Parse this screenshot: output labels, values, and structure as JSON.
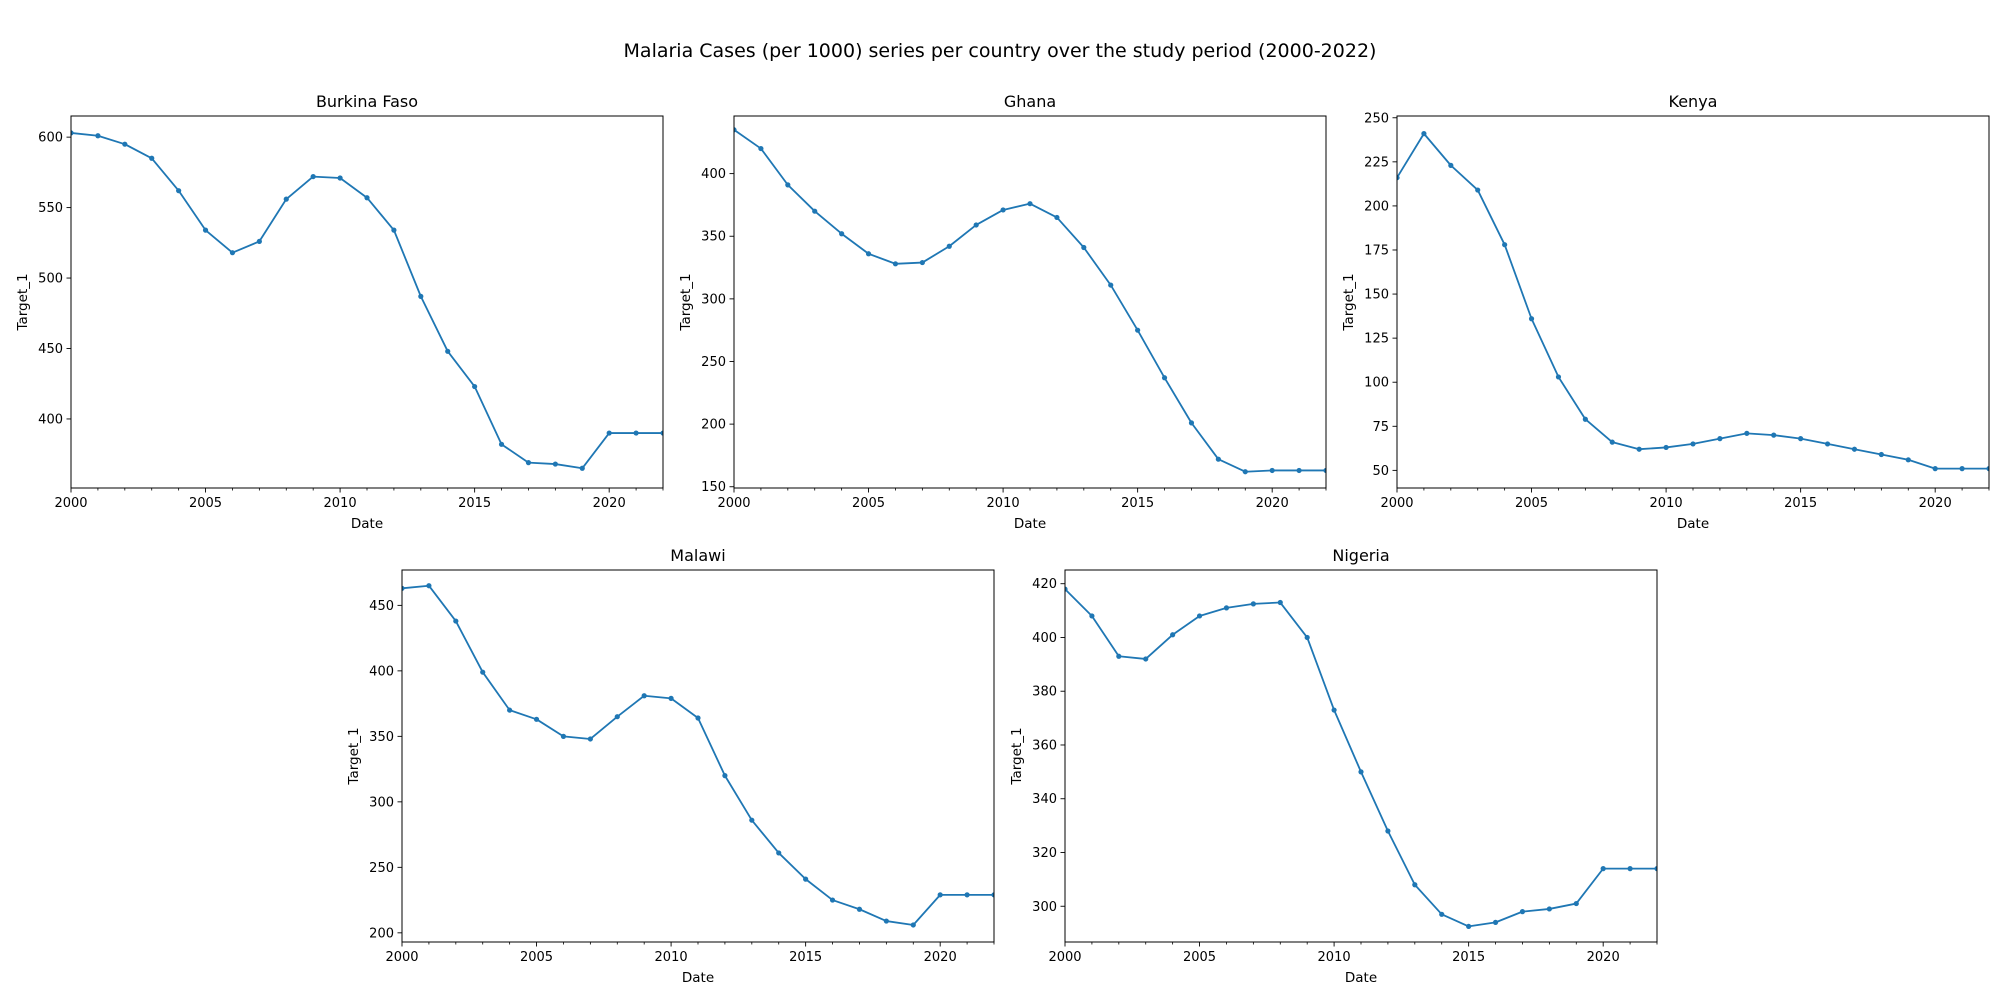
{
  "figure": {
    "title": "Malaria Cases (per 1000) series per country over the study period (2000-2022)",
    "line_color": "#1f77b4"
  },
  "chart_data": [
    {
      "type": "line",
      "title": "Burkina Faso",
      "xlabel": "Date",
      "ylabel": "Target_1",
      "xlim": [
        2000,
        2022
      ],
      "ylim": [
        351,
        615
      ],
      "xticks": [
        2000,
        2005,
        2010,
        2015,
        2020
      ],
      "yticks": [
        400,
        450,
        500,
        550,
        600
      ],
      "grid": false,
      "series": [
        {
          "x": [
            2000,
            2001,
            2002,
            2003,
            2004,
            2005,
            2006,
            2007,
            2008,
            2009,
            2010,
            2011,
            2012,
            2013,
            2014,
            2015,
            2016,
            2017,
            2018,
            2019,
            2020,
            2021,
            2022
          ],
          "y": [
            603,
            601,
            595,
            585,
            562,
            534,
            518,
            526,
            556,
            572,
            571,
            557,
            534,
            487,
            448,
            423,
            382,
            369,
            368,
            365,
            390,
            390,
            390
          ]
        }
      ]
    },
    {
      "type": "line",
      "title": "Ghana",
      "xlabel": "Date",
      "ylabel": "Target_1",
      "xlim": [
        2000,
        2022
      ],
      "ylim": [
        149,
        446
      ],
      "xticks": [
        2000,
        2005,
        2010,
        2015,
        2020
      ],
      "yticks": [
        150,
        200,
        250,
        300,
        350,
        400
      ],
      "grid": false,
      "series": [
        {
          "x": [
            2000,
            2001,
            2002,
            2003,
            2004,
            2005,
            2006,
            2007,
            2008,
            2009,
            2010,
            2011,
            2012,
            2013,
            2014,
            2015,
            2016,
            2017,
            2018,
            2019,
            2020,
            2021,
            2022
          ],
          "y": [
            435,
            420,
            391,
            370,
            352,
            336,
            328,
            329,
            342,
            359,
            371,
            376,
            365,
            341,
            311,
            275,
            237,
            201,
            172,
            162,
            163,
            163,
            163
          ]
        }
      ]
    },
    {
      "type": "line",
      "title": "Kenya",
      "xlabel": "Date",
      "ylabel": "Target_1",
      "xlim": [
        2000,
        2022
      ],
      "ylim": [
        40,
        251
      ],
      "xticks": [
        2000,
        2005,
        2010,
        2015,
        2020
      ],
      "yticks": [
        50,
        75,
        100,
        125,
        150,
        175,
        200,
        225,
        250
      ],
      "grid": false,
      "series": [
        {
          "x": [
            2000,
            2001,
            2002,
            2003,
            2004,
            2005,
            2006,
            2007,
            2008,
            2009,
            2010,
            2011,
            2012,
            2013,
            2014,
            2015,
            2016,
            2017,
            2018,
            2019,
            2020,
            2021,
            2022
          ],
          "y": [
            216,
            241,
            223,
            209,
            178,
            136,
            103,
            79,
            66,
            62,
            63,
            65,
            68,
            71,
            70,
            68,
            65,
            62,
            59,
            56,
            51,
            51,
            51
          ]
        }
      ]
    },
    {
      "type": "line",
      "title": "Malawi",
      "xlabel": "Date",
      "ylabel": "Target_1",
      "xlim": [
        2000,
        2022
      ],
      "ylim": [
        193,
        477
      ],
      "xticks": [
        2000,
        2005,
        2010,
        2015,
        2020
      ],
      "yticks": [
        200,
        250,
        300,
        350,
        400,
        450
      ],
      "grid": false,
      "series": [
        {
          "x": [
            2000,
            2001,
            2002,
            2003,
            2004,
            2005,
            2006,
            2007,
            2008,
            2009,
            2010,
            2011,
            2012,
            2013,
            2014,
            2015,
            2016,
            2017,
            2018,
            2019,
            2020,
            2021,
            2022
          ],
          "y": [
            463,
            465,
            438,
            399,
            370,
            363,
            350,
            348,
            365,
            381,
            379,
            364,
            320,
            286,
            261,
            241,
            225,
            218,
            209,
            206,
            229,
            229,
            229
          ]
        }
      ]
    },
    {
      "type": "line",
      "title": "Nigeria",
      "xlabel": "Date",
      "ylabel": "Target_1",
      "xlim": [
        2000,
        2022
      ],
      "ylim": [
        286.7,
        425.1
      ],
      "xticks": [
        2000,
        2005,
        2010,
        2015,
        2020
      ],
      "yticks": [
        300,
        320,
        340,
        360,
        380,
        400,
        420
      ],
      "grid": false,
      "series": [
        {
          "x": [
            2000,
            2001,
            2002,
            2003,
            2004,
            2005,
            2006,
            2007,
            2008,
            2009,
            2010,
            2011,
            2012,
            2013,
            2014,
            2015,
            2016,
            2017,
            2018,
            2019,
            2020,
            2021,
            2022
          ],
          "y": [
            418,
            408,
            393,
            392,
            401,
            408,
            411,
            412.5,
            413,
            400,
            373,
            350,
            328,
            308,
            297,
            292.5,
            294,
            298,
            299,
            301,
            314,
            314,
            314
          ]
        }
      ]
    }
  ]
}
